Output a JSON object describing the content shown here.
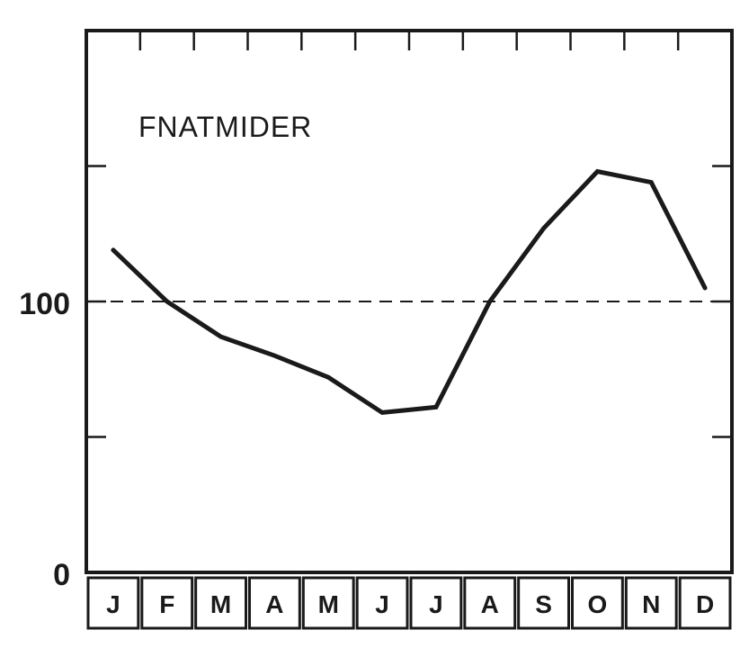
{
  "chart_data": {
    "type": "line",
    "categories": [
      "J",
      "F",
      "M",
      "A",
      "M",
      "J",
      "J",
      "A",
      "S",
      "O",
      "N",
      "D"
    ],
    "series": [
      {
        "name": "FNATMIDER",
        "values": [
          119,
          100,
          87,
          80,
          72,
          59,
          61,
          100,
          127,
          148,
          144,
          105
        ]
      }
    ],
    "y_tick_labels": [
      "0",
      "100"
    ],
    "reference_line": {
      "value": 100,
      "style": "dashed"
    },
    "ylim": [
      0,
      200
    ],
    "grid": false,
    "legend": "inside-top-left",
    "title": "",
    "xlabel": "",
    "ylabel": ""
  },
  "colors": {
    "line": "#1a1a1a",
    "background": "#ffffff"
  }
}
